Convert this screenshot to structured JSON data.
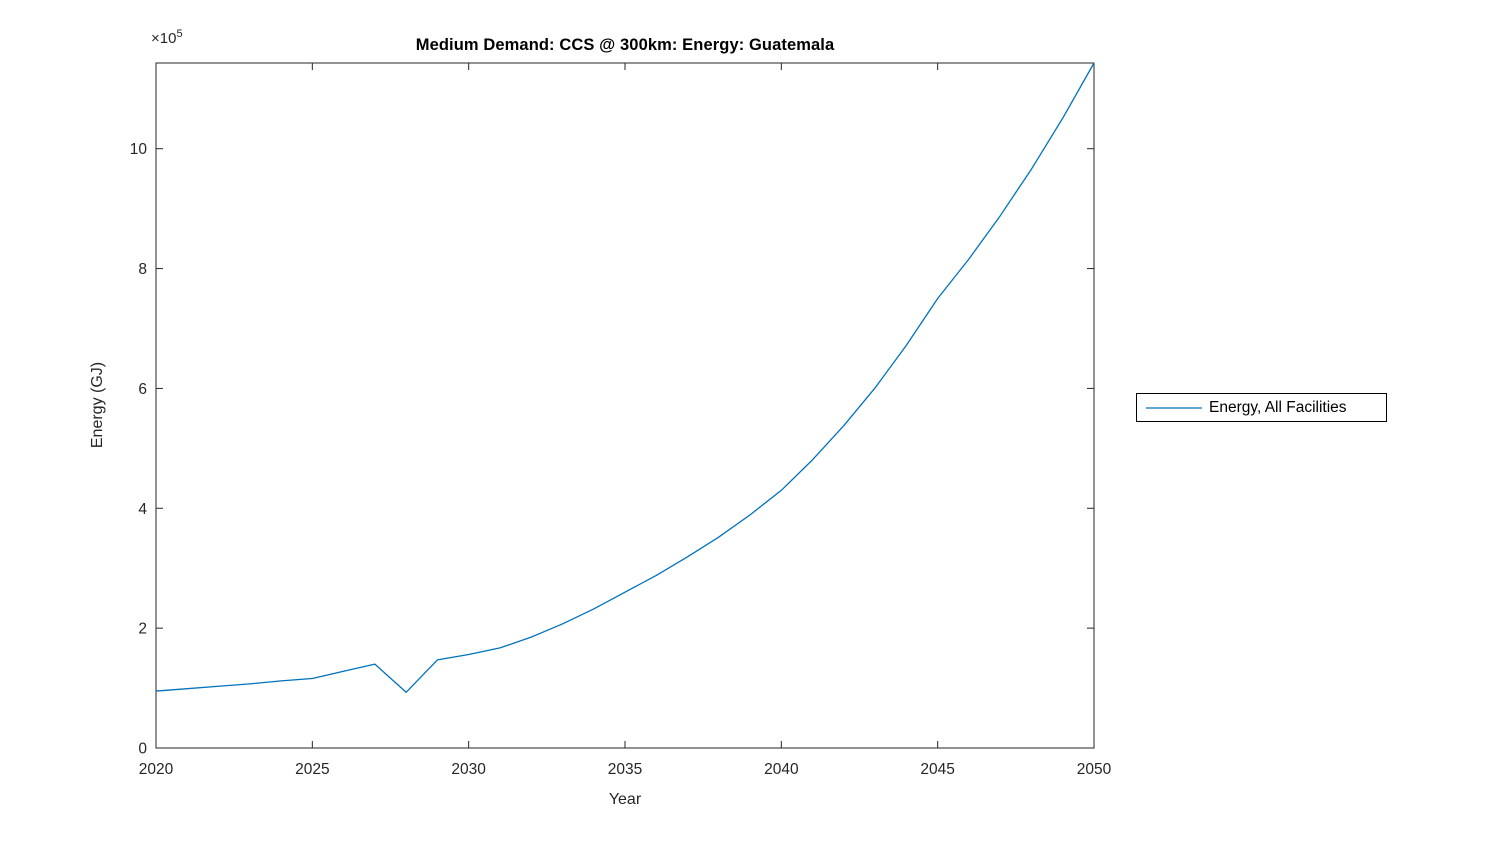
{
  "figure": {
    "colors": {
      "line": "#0072BD",
      "axis": "#262626",
      "tick_label": "#262626",
      "background": "#ffffff",
      "legend_border": "#000000"
    }
  },
  "chart_data": {
    "type": "line",
    "title": "Medium Demand: CCS @ 300km: Energy: Guatemala",
    "xlabel": "Year",
    "ylabel": "Energy (GJ)",
    "y_multiplier_base": "×10",
    "y_multiplier_exp": "5",
    "x": [
      2020,
      2021,
      2022,
      2023,
      2024,
      2025,
      2026,
      2027,
      2028,
      2029,
      2030,
      2031,
      2032,
      2033,
      2034,
      2035,
      2036,
      2037,
      2038,
      2039,
      2040,
      2041,
      2042,
      2043,
      2044,
      2045,
      2046,
      2047,
      2048,
      2049,
      2050
    ],
    "series": [
      {
        "name": "Energy, All Facilities",
        "color": "#0072BD",
        "values": [
          95000,
          99000,
          103000,
          107000,
          112000,
          116000,
          128000,
          140000,
          93000,
          147000,
          156000,
          167000,
          185000,
          207000,
          232000,
          260000,
          288000,
          319000,
          352000,
          389000,
          430000,
          481000,
          538000,
          601000,
          672000,
          750000,
          816000,
          888000,
          966000,
          1051000,
          1143000
        ]
      }
    ],
    "xlim": [
      2020,
      2050
    ],
    "ylim": [
      0,
      1143000
    ],
    "xticks": [
      2020,
      2025,
      2030,
      2035,
      2040,
      2045,
      2050
    ],
    "yticks": [
      0,
      200000,
      400000,
      600000,
      800000,
      1000000
    ],
    "ytick_labels": [
      "0",
      "2",
      "4",
      "6",
      "8",
      "10"
    ],
    "grid": false,
    "legend_position": "right-outside"
  }
}
